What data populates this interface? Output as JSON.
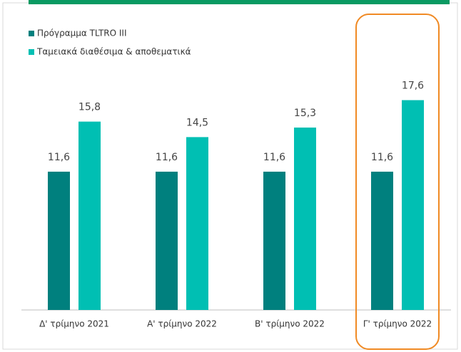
{
  "chart_data": {
    "type": "bar",
    "categories": [
      "Δ' τρίμηνο 2021",
      "Α' τρίμηνο 2022",
      "Β' τρίμηνο 2022",
      "Γ' τρίμηνο 2022"
    ],
    "series": [
      {
        "name": "Πρόγραμμα TLTRO III",
        "color": "#00807e",
        "values": [
          11.6,
          11.6,
          11.6,
          11.6
        ],
        "value_labels": [
          "11,6",
          "11,6",
          "11,6",
          "11,6"
        ]
      },
      {
        "name": "Ταμειακά διαθέσιμα & αποθεματικά",
        "color": "#00bfb3",
        "values": [
          15.8,
          14.5,
          15.3,
          17.6
        ],
        "value_labels": [
          "15,8",
          "14,5",
          "15,3",
          "17,6"
        ]
      }
    ],
    "ylim": [
      0,
      26
    ],
    "legend": "top-left",
    "highlight_color": "#f08a24"
  }
}
